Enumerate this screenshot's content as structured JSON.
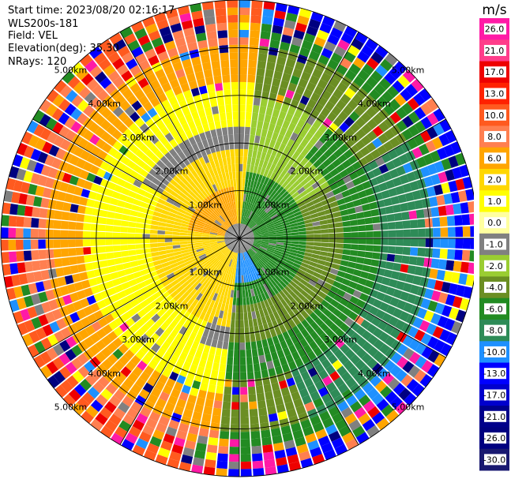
{
  "header": {
    "start_time": "Start time: 2023/08/20 02:16:17",
    "instrument": "WLS200s-181",
    "field": "Field: VEL",
    "elevation": "Elevation(deg): 35.30",
    "nrays": "NRays: 120"
  },
  "colorbar": {
    "unit": "m/s",
    "labels": [
      "26.0",
      "21.0",
      "17.0",
      "13.0",
      "10.0",
      "8.0",
      "6.0",
      "2.0",
      "1.0",
      "0.0",
      "-1.0",
      "-2.0",
      "-4.0",
      "-6.0",
      "-8.0",
      "-10.0",
      "-13.0",
      "-17.0",
      "-21.0",
      "-26.0",
      "-30.0"
    ],
    "colors": [
      "#ff1aa6",
      "#ff3d8a",
      "#ee0000",
      "#ff2200",
      "#ff5a1f",
      "#ff7f50",
      "#ffa500",
      "#ffd700",
      "#ffff00",
      "#ffffa0",
      "#808080",
      "#9acd32",
      "#6b8e23",
      "#228b22",
      "#2e8b57",
      "#1e90ff",
      "#0000ff",
      "#0000cd",
      "#00008b",
      "#000080",
      "#191970"
    ]
  },
  "chart_data": {
    "type": "ppi",
    "field": "VEL",
    "nrays": 120,
    "elevation_deg": 35.3,
    "range_rings_km": [
      1.0,
      2.0,
      3.0,
      4.0,
      5.0
    ],
    "ring_labels": [
      "1.00km",
      "2.00km",
      "3.00km",
      "4.00km",
      "5.00km"
    ],
    "max_range_km": 5.0,
    "spokes_deg": [
      0,
      30,
      60,
      90,
      120,
      150,
      180,
      210,
      240,
      270,
      300,
      330
    ],
    "grid": true
  }
}
